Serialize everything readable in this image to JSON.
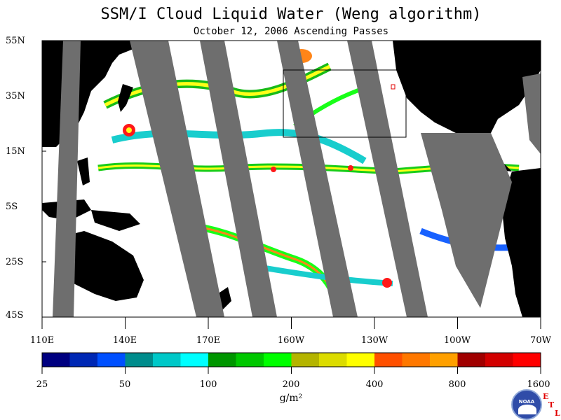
{
  "title": "SSM/I Cloud Liquid Water (Weng algorithm)",
  "subtitle": "October 12, 2006  Ascending Passes",
  "lat_labels": [
    "55N",
    "35N",
    "15N",
    "5S",
    "25S",
    "45S"
  ],
  "lon_labels": [
    "110E",
    "140E",
    "170E",
    "160W",
    "130W",
    "100W",
    "70W"
  ],
  "colorbar": {
    "colors": [
      "#000080",
      "#0028b4",
      "#0050ff",
      "#008c8c",
      "#00c8c8",
      "#00ffff",
      "#009600",
      "#00c800",
      "#00ff00",
      "#b4b400",
      "#dcdc00",
      "#ffff00",
      "#ff5000",
      "#ff7800",
      "#ffa000",
      "#a00000",
      "#d20000",
      "#ff0000"
    ],
    "tick_labels": [
      "25",
      "50",
      "100",
      "200",
      "400",
      "800",
      "1600"
    ],
    "units": "g/m²"
  },
  "colors": {
    "land": "#000000",
    "no_data_swath": "#6e6e6e",
    "ocean_clear": "#ffffff"
  },
  "logos": {
    "noaa": "NOAA",
    "etl": [
      "E",
      "T",
      "L"
    ]
  }
}
